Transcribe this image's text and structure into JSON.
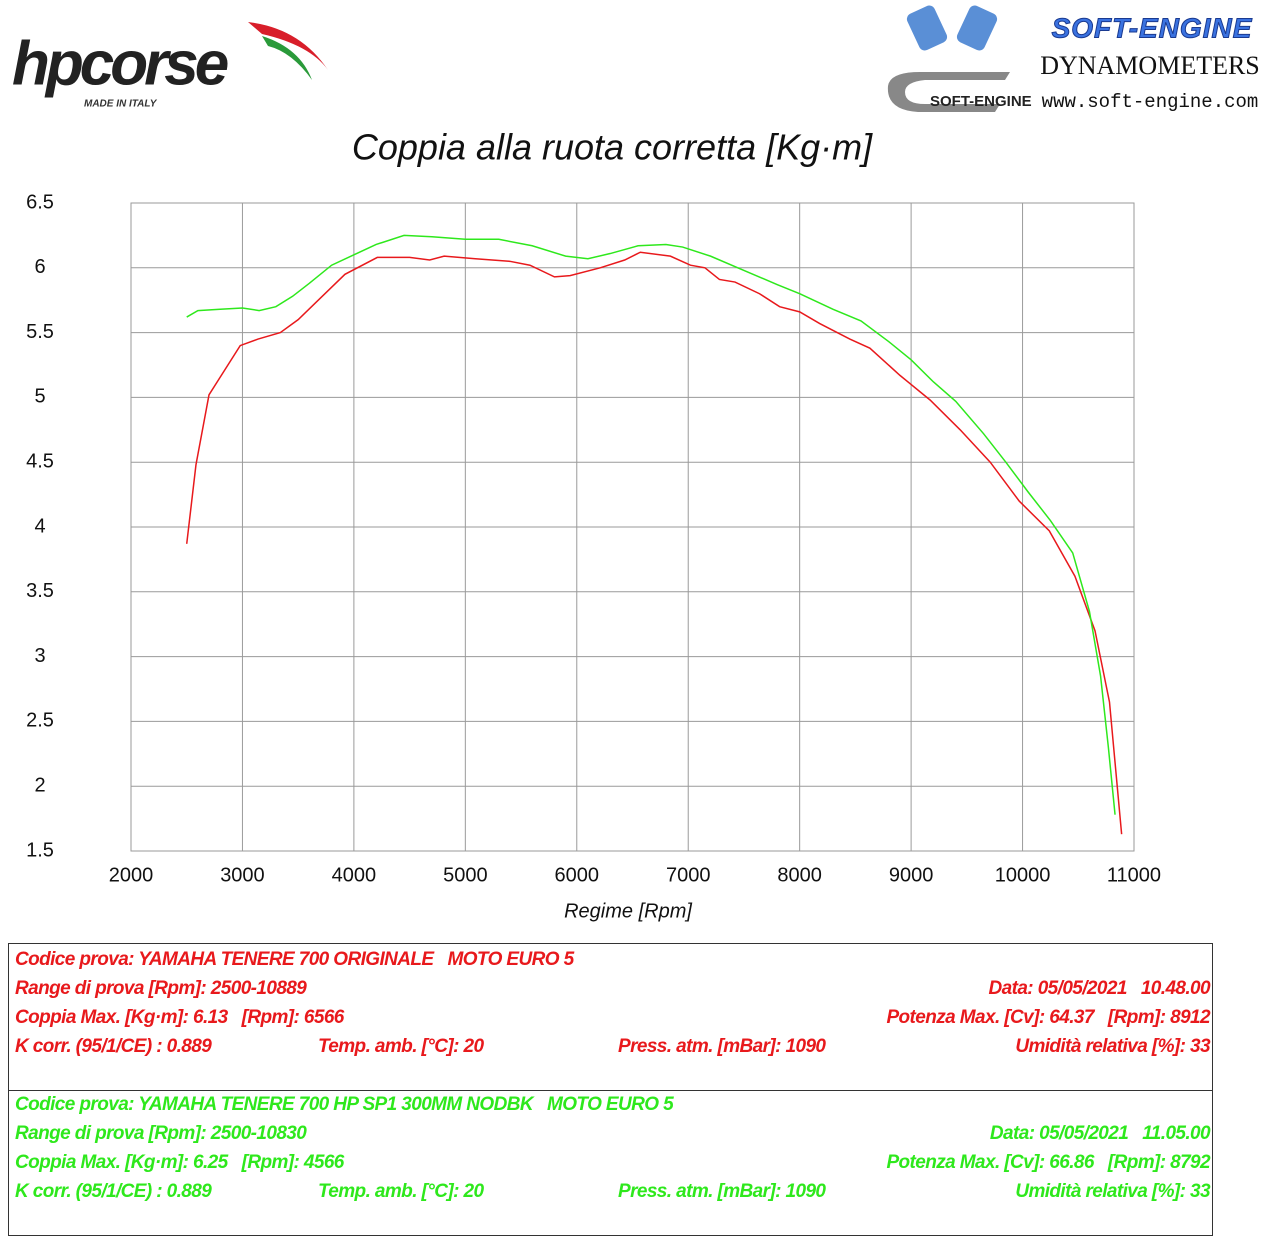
{
  "header": {
    "brand": "hpcorse",
    "brand_tagline": "MADE IN ITALY",
    "dyno_brand": "SOFT-ENGINE",
    "dyno_subtitle": "DYNAMOMETERS",
    "dyno_small_logo": "SOFT-ENGINE",
    "dyno_url": "www.soft-engine.com"
  },
  "chart_data": {
    "type": "line",
    "title": "Coppia alla ruota corretta [Kg·m]",
    "x_label": "Regime [Rpm]",
    "xlim": [
      2000,
      11000
    ],
    "xticks": [
      2000,
      3000,
      4000,
      5000,
      6000,
      7000,
      8000,
      9000,
      10000,
      11000
    ],
    "ylim": [
      1.5,
      6.5
    ],
    "yticks": [
      1.5,
      2,
      2.5,
      3,
      3.5,
      4,
      4.5,
      5,
      5.5,
      6,
      6.5
    ],
    "grid": true,
    "series": [
      {
        "color": "#e8191c",
        "x": [
          2500,
          2583,
          2700,
          2980,
          3140,
          3340,
          3500,
          3680,
          3920,
          4210,
          4500,
          4680,
          4810,
          5090,
          5400,
          5580,
          5800,
          5940,
          6210,
          6430,
          6570,
          6840,
          7020,
          7150,
          7280,
          7420,
          7640,
          7820,
          8000,
          8180,
          8450,
          8630,
          8900,
          9170,
          9440,
          9710,
          9970,
          10240,
          10470,
          10650,
          10780,
          10889
        ],
        "values": [
          3.87,
          4.48,
          5.02,
          5.4,
          5.45,
          5.5,
          5.6,
          5.75,
          5.95,
          6.08,
          6.08,
          6.06,
          6.09,
          6.07,
          6.05,
          6.02,
          5.93,
          5.94,
          6.0,
          6.06,
          6.12,
          6.09,
          6.02,
          6.0,
          5.91,
          5.89,
          5.8,
          5.7,
          5.66,
          5.57,
          5.45,
          5.38,
          5.17,
          4.98,
          4.75,
          4.5,
          4.2,
          3.97,
          3.62,
          3.2,
          2.65,
          1.63
        ]
      },
      {
        "color": "#2ee81c",
        "x": [
          2500,
          2600,
          2800,
          3000,
          3150,
          3300,
          3450,
          3600,
          3800,
          4000,
          4200,
          4450,
          4700,
          5000,
          5300,
          5600,
          5900,
          6100,
          6300,
          6550,
          6800,
          6950,
          7200,
          7500,
          7800,
          8000,
          8300,
          8550,
          8800,
          9000,
          9200,
          9400,
          9650,
          9850,
          10050,
          10250,
          10450,
          10600,
          10700,
          10770,
          10830
        ],
        "values": [
          5.62,
          5.67,
          5.68,
          5.69,
          5.67,
          5.7,
          5.78,
          5.88,
          6.02,
          6.1,
          6.18,
          6.25,
          6.24,
          6.22,
          6.22,
          6.17,
          6.09,
          6.07,
          6.11,
          6.17,
          6.18,
          6.16,
          6.09,
          5.98,
          5.87,
          5.8,
          5.68,
          5.59,
          5.43,
          5.29,
          5.12,
          4.97,
          4.72,
          4.5,
          4.27,
          4.05,
          3.8,
          3.35,
          2.85,
          2.3,
          1.78
        ]
      }
    ]
  },
  "runs": [
    {
      "rows": [
        [
          "Codice prova: YAMAHA TENERE 700 ORIGINALE   MOTO EURO 5"
        ],
        [
          "Range di prova [Rpm]: 2500-10889",
          "Data: 05/05/2021   10.48.00"
        ],
        [
          "Coppia Max. [Kg·m]: 6.13   [Rpm]: 6566",
          "Potenza Max. [Cv]: 64.37   [Rpm]: 8912"
        ],
        [
          "K corr. (95/1/CE) : 0.889",
          "Temp. amb. [°C]: 20",
          "Press. atm. [mBar]: 1090",
          "Umidità relativa [%]: 33"
        ]
      ]
    },
    {
      "rows": [
        [
          "Codice prova: YAMAHA TENERE 700 HP SP1 300MM NODBK   MOTO EURO 5"
        ],
        [
          "Range di prova [Rpm]: 2500-10830",
          "Data: 05/05/2021   11.05.00"
        ],
        [
          "Coppia Max. [Kg·m]: 6.25   [Rpm]: 4566",
          "Potenza Max. [Cv]: 66.86   [Rpm]: 8792"
        ],
        [
          "K corr. (95/1/CE) : 0.889",
          "Temp. amb. [°C]: 20",
          "Press. atm. [mBar]: 1090",
          "Umidità relativa [%]: 33"
        ]
      ]
    }
  ]
}
